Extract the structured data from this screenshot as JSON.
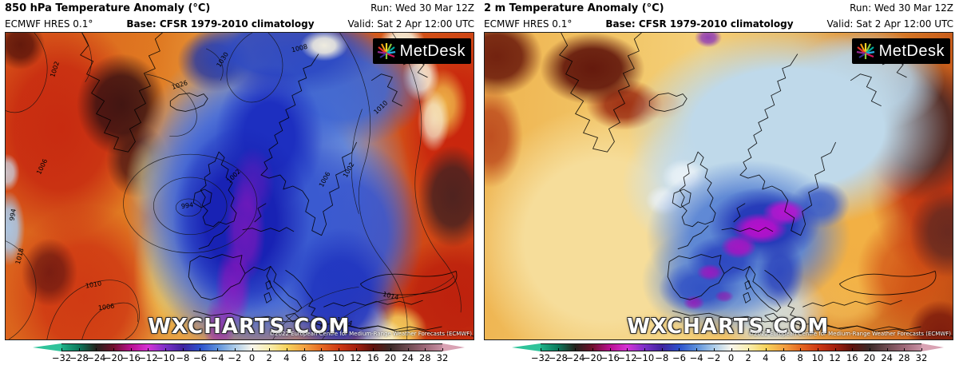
{
  "colorbar": {
    "ticks": [
      "−32",
      "−28",
      "−24",
      "−20",
      "−16",
      "−12",
      "−10",
      "−8",
      "−6",
      "−4",
      "−2",
      "0",
      "2",
      "4",
      "6",
      "8",
      "10",
      "12",
      "16",
      "20",
      "24",
      "28",
      "32"
    ],
    "colors": [
      "#1fb289",
      "#0b7a5c",
      "#24221c",
      "#70102c",
      "#b81090",
      "#d633d6",
      "#7c30c8",
      "#40239f",
      "#2b50cc",
      "#5b8fdb",
      "#aacbe9",
      "#f7f5ec",
      "#f9eeb0",
      "#f6d35c",
      "#f3a342",
      "#e66a22",
      "#ce3a14",
      "#a5200e",
      "#5e120c",
      "#3c2a28",
      "#6e4a50",
      "#9e6878",
      "#c890a3"
    ],
    "tip_left": "#2fc39a",
    "tip_right": "#d9a2b3"
  },
  "panels": [
    {
      "id": "850hpa",
      "title": "850 hPa Temperature Anomaly (°C)",
      "model": "ECMWF HRES 0.1°",
      "base": "Base: CFSR 1979-2010 climatology",
      "run": "Run: Wed 30 Mar 12Z",
      "valid": "Valid: Sat 2 Apr 12:00 UTC",
      "logo": "MetDesk",
      "watermark": "WXCHARTS.COM",
      "copyright": "©2022 European Centre for Medium-Range Weather Forecasts (ECMWF)",
      "contour_labels": [
        "1002",
        "994",
        "994",
        "1002",
        "1006",
        "1018",
        "1010",
        "1006",
        "1008",
        "1030",
        "1026",
        "1010",
        "1002",
        "1006",
        "1014",
        "1014"
      ]
    },
    {
      "id": "2m",
      "title": "2 m Temperature Anomaly (°C)",
      "model": "ECMWF HRES 0.1°",
      "base": "Base: CFSR 1979-2010 climatology",
      "run": "Run: Wed 30 Mar 12Z",
      "valid": "Valid: Sat 2 Apr 12:00 UTC",
      "logo": "MetDesk",
      "watermark": "WXCHARTS.COM",
      "copyright": "©2022 European Centre for Medium-Range Weather Forecasts (ECMWF)"
    }
  ]
}
